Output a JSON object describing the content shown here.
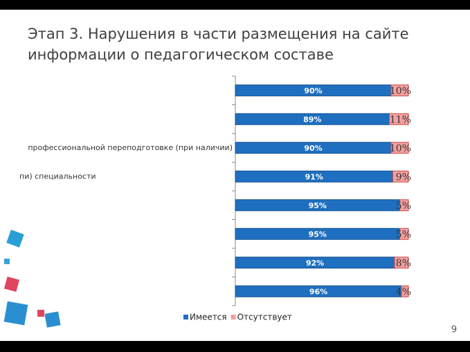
{
  "chart_data": {
    "type": "stacked-bar-horizontal",
    "title": "Этап 3. Нарушения в части размещения на сайте информации о педагогическом составе",
    "page_number": "9",
    "categories": [
      null,
      null,
      "профессиональной переподготовке (при наличии)",
      "пи) специальности",
      null,
      null,
      null,
      null
    ],
    "xlim": [
      0,
      100
    ],
    "legend": "bottom",
    "series": [
      {
        "name": "Имеется",
        "color": "#1f6fc0",
        "values": [
          90,
          89,
          90,
          91,
          95,
          95,
          92,
          96
        ],
        "value_labels": [
          "90%",
          "89%",
          "90%",
          "91%",
          "95%",
          "95%",
          "92%",
          "96%"
        ]
      },
      {
        "name": "Отсутствует",
        "color": "#f2a0a0",
        "values": [
          10,
          11,
          10,
          9,
          5,
          5,
          8,
          4
        ],
        "value_labels": [
          "10%",
          "11%",
          "10%",
          "9%",
          "5%",
          "5%",
          "8%",
          "4%"
        ]
      }
    ]
  }
}
